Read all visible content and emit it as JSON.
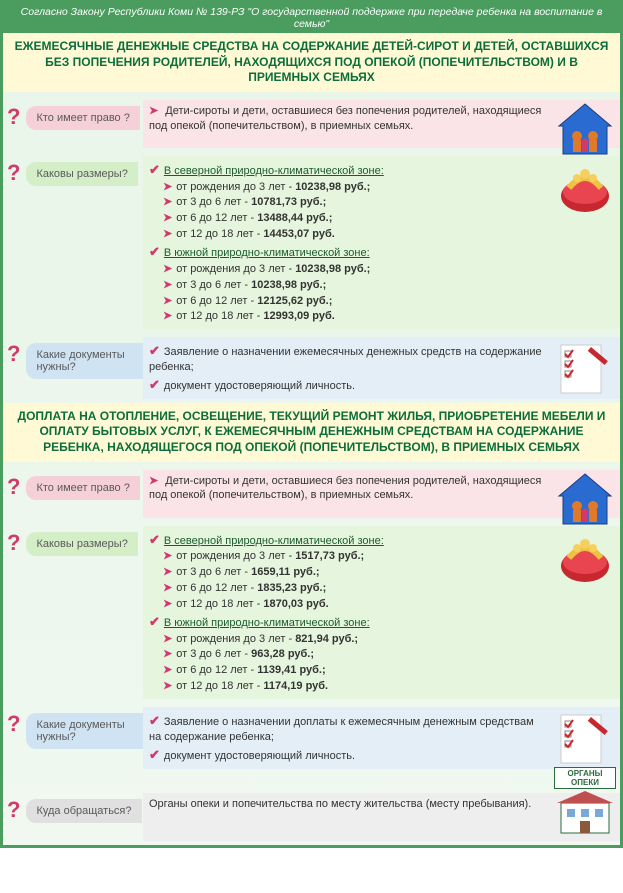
{
  "colors": {
    "border": "#4a9d5e",
    "titleBg": "#fff9d6",
    "titleText": "#0b6e3a",
    "accent": "#d13a6a",
    "pink": "#f5d0d8",
    "pinkLight": "#fae4e8",
    "green": "#d4eec8",
    "greenLight": "#e6f5dd",
    "blue": "#cfe3f2",
    "blueLight": "#e3eef7",
    "gray": "#e0e0e0",
    "grayLight": "#eeeeee"
  },
  "lawHeader": "Согласно Закону Республики Коми № 139-РЗ \"О государственной поддержке при передаче ребенка на воспитание в семью\"",
  "section1": {
    "title": "ЕЖЕМЕСЯЧНЫЕ ДЕНЕЖНЫЕ СРЕДСТВА НА СОДЕРЖАНИЕ ДЕТЕЙ-СИРОТ И ДЕТЕЙ, ОСТАВШИХСЯ БЕЗ ПОПЕЧЕНИЯ РОДИТЕЛЕЙ, НАХОДЯЩИХСЯ ПОД ОПЕКОЙ (ПОПЕЧИТЕЛЬСТВОМ) И В ПРИЕМНЫХ СЕМЬЯХ",
    "q1": "Кто имеет право ?",
    "a1": "Дети-сироты и дети, оставшиеся без попечения родителей, находящиеся под опекой (попечительством), в приемных семьях.",
    "q2": "Каковы размеры?",
    "zoneNorth": "В северной природно-климатической зоне:",
    "zoneSouth": "В южной природно-климатической зоне:",
    "north": [
      {
        "age": "от рождения до 3 лет",
        "amt": "10238,98 руб.;"
      },
      {
        "age": "от 3 до 6 лет",
        "amt": "10781,73 руб.;"
      },
      {
        "age": "от 6 до 12 лет",
        "amt": "13488,44 руб.;"
      },
      {
        "age": "от 12 до 18 лет",
        "amt": "14453,07 руб."
      }
    ],
    "south": [
      {
        "age": "от рождения до 3 лет",
        "amt": "10238,98 руб.;"
      },
      {
        "age": "от 3 до 6 лет",
        "amt": "10238,98 руб.;"
      },
      {
        "age": "от 6 до 12 лет",
        "amt": "12125,62 руб.;"
      },
      {
        "age": "от 12 до 18 лет",
        "amt": "12993,09 руб."
      }
    ],
    "q3": "Какие документы нужны?",
    "doc1": "Заявление о назначении ежемесячных денежных средств на содержание ребенка;",
    "doc2": "документ удостоверяющий личность."
  },
  "section2": {
    "title": "ДОПЛАТА НА ОТОПЛЕНИЕ, ОСВЕЩЕНИЕ, ТЕКУЩИЙ РЕМОНТ ЖИЛЬЯ, ПРИОБРЕТЕНИЕ МЕБЕЛИ И ОПЛАТУ БЫТОВЫХ УСЛУГ, К ЕЖЕМЕСЯЧНЫМ ДЕНЕЖНЫМ СРЕДСТВАМ НА СОДЕРЖАНИЕ РЕБЕНКА, НАХОДЯЩЕГОСЯ ПОД ОПЕКОЙ (ПОПЕЧИТЕЛЬСТВОМ), В ПРИЕМНЫХ СЕМЬЯХ",
    "q1": "Кто имеет право ?",
    "a1": "Дети-сироты и дети, оставшиеся без попечения родителей, находящиеся под опекой (попечительством), в приемных семьях.",
    "q2": "Каковы размеры?",
    "north": [
      {
        "age": "от рождения до 3 лет",
        "amt": "1517,73 руб.;"
      },
      {
        "age": "от 3 до 6 лет",
        "amt": "1659,11 руб.;"
      },
      {
        "age": "от 6 до 12 лет",
        "amt": "1835,23 руб.;"
      },
      {
        "age": "от 12 до 18 лет",
        "amt": "1870,03 руб."
      }
    ],
    "south": [
      {
        "age": "от рождения до 3 лет",
        "amt": "821,94 руб.;"
      },
      {
        "age": "от 3 до 6 лет",
        "amt": "963,28 руб.;"
      },
      {
        "age": "от 6 до 12 лет",
        "amt": "1139,41 руб.;"
      },
      {
        "age": "от 12 до 18 лет",
        "amt": "1174,19 руб."
      }
    ],
    "q3": "Какие документы нужны?",
    "doc1": "Заявление о назначении доплаты к ежемесячным денежным средствам на содержание ребенка;",
    "doc2": "документ удостоверяющий личность.",
    "q4": "Куда обращаться?",
    "a4": "Органы опеки и попечительства по месту жительства (месту пребывания).",
    "iconLabel": "ОРГАНЫ ОПЕКИ"
  }
}
